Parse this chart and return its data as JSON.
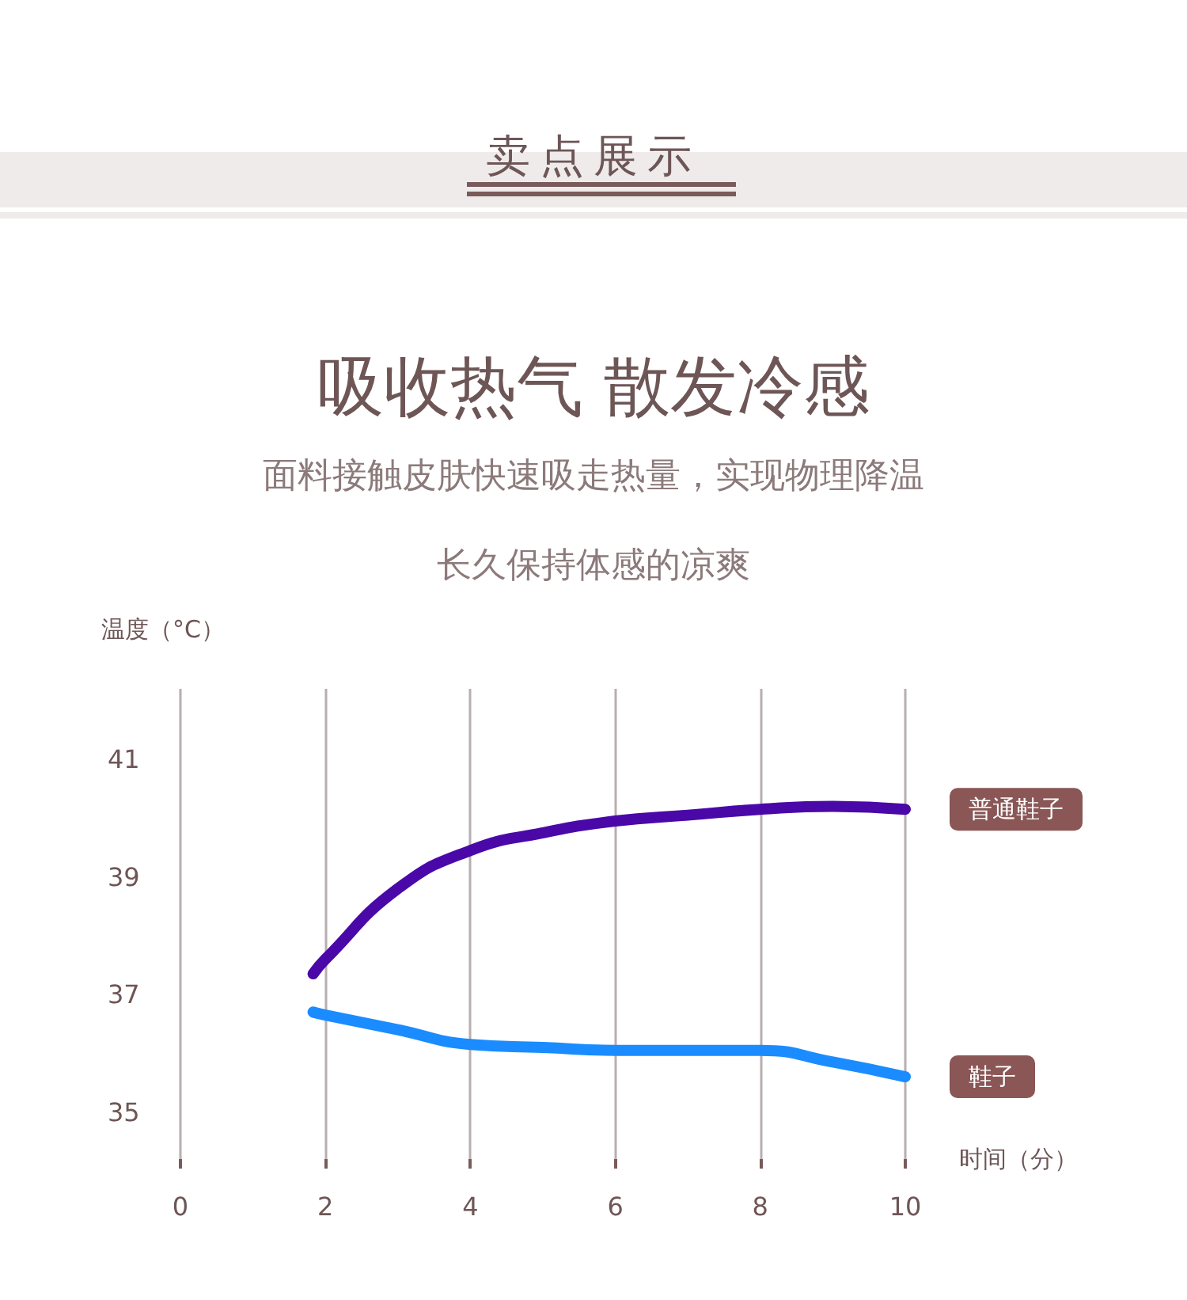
{
  "chart_data": {
    "type": "line",
    "title": "吸收热气 散发冷感",
    "subtitle": "面料接触皮肤快速吸走热量，实现物理降温",
    "annotations": [
      "卖点展示",
      "长久保持体感的凉爽"
    ],
    "xlabel": "时间（分）",
    "ylabel": "温度（°C）",
    "series": [
      {
        "name": "普通鞋子",
        "color": "#4a08a8",
        "x": [
          1.83,
          2,
          3,
          4,
          5,
          6,
          7,
          8,
          9,
          10
        ],
        "values": [
          37.35,
          37.6,
          38.8,
          39.45,
          39.75,
          39.95,
          40.05,
          40.15,
          40.2,
          40.15
        ]
      },
      {
        "name": "鞋子",
        "color": "#1a8cff",
        "x": [
          1.83,
          2,
          3,
          4,
          5,
          6,
          7,
          8,
          9,
          10
        ],
        "values": [
          36.7,
          36.65,
          36.4,
          36.15,
          36.1,
          36.05,
          36.05,
          36.05,
          35.85,
          35.6
        ]
      }
    ],
    "xlim": [
      0,
      10
    ],
    "xticks": [
      0,
      2,
      4,
      6,
      8,
      10
    ],
    "ylim": [
      34.2,
      42.2
    ],
    "yticks": [
      35,
      37,
      39,
      41
    ],
    "grid": "x",
    "legend": false,
    "line_style": "solid"
  }
}
